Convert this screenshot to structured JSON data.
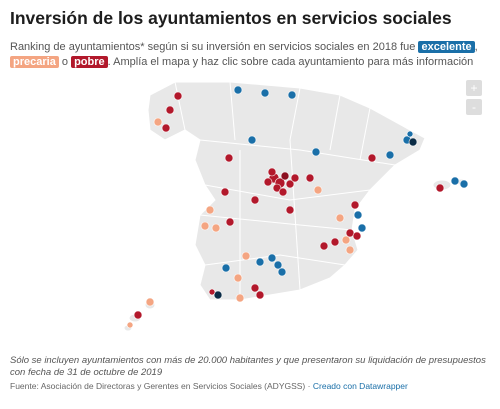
{
  "header": {
    "title": "Inversión de los ayuntamientos en servicios sociales",
    "subtitle": [
      "Ranking de ayuntamientos* según si su inversión en servicios sociales en 2018 fue",
      "excelente",
      ",",
      "precaria",
      "o",
      "pobre",
      ". Amplía el mapa y haz clic sobre cada ayuntamiento para más información"
    ]
  },
  "zoom": {
    "in": "+",
    "out": "-"
  },
  "footer": {
    "note": "Sólo se incluyen ayuntamientos con más de 20.000 habitantes y que presentaron su liquidación de presupuestos con fecha de 31 de octubre de 2019",
    "source": "Fuente: Asociación de Directoras y Gerentes en Servicios Sociales (ADYGSS)",
    "separator": "·",
    "credit": "Creado con Datawrapper"
  }
}
